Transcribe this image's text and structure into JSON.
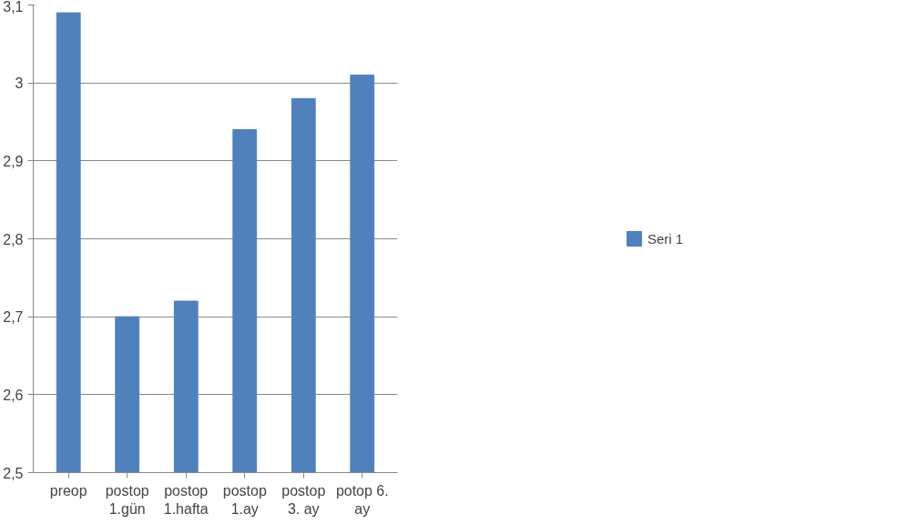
{
  "chart_data": {
    "type": "bar",
    "categories": [
      "preop",
      "postop\n1.gün",
      "postop\n1.hafta",
      "postop\n1.ay",
      "postop\n3. ay",
      "potop 6.\nay"
    ],
    "series": [
      {
        "name": "Seri 1",
        "color": "#4f81bd",
        "values": [
          3.09,
          2.7,
          2.72,
          2.94,
          2.98,
          3.01
        ]
      }
    ],
    "ylim": [
      2.5,
      3.1
    ],
    "yticks": [
      {
        "value": 2.5,
        "label": "2,5"
      },
      {
        "value": 2.6,
        "label": "2,6"
      },
      {
        "value": 2.7,
        "label": "2,7"
      },
      {
        "value": 2.8,
        "label": "2,8"
      },
      {
        "value": 2.9,
        "label": "2,9"
      },
      {
        "value": 3.0,
        "label": "3"
      },
      {
        "value": 3.1,
        "label": "3,1"
      }
    ],
    "grid": "y",
    "legend": "right"
  }
}
